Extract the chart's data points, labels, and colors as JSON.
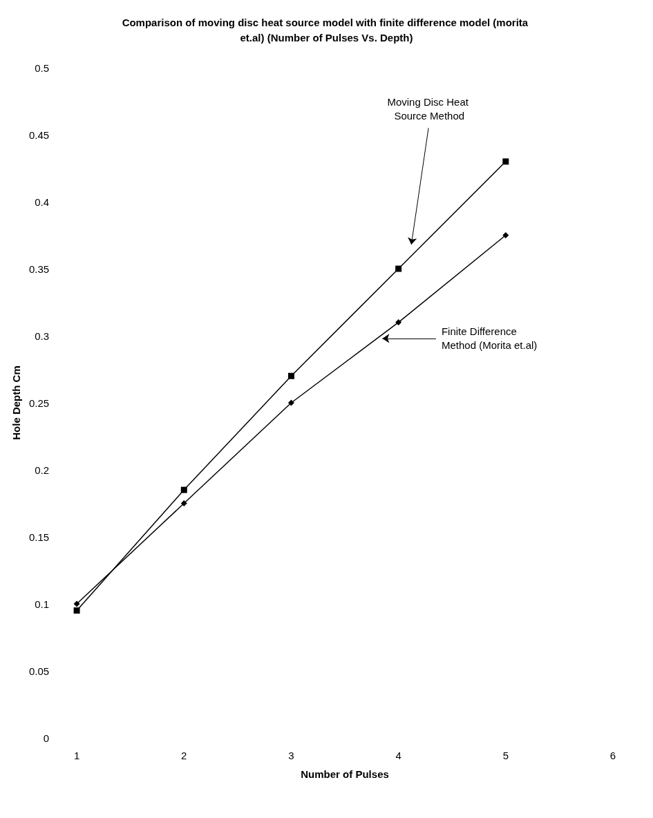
{
  "chart_data": {
    "type": "line",
    "title": "Comparison of moving disc heat source model with finite difference model (morita et.al) (Number of Pulses Vs. Depth)",
    "xlabel": "Number of Pulses",
    "ylabel": "Hole Depth Cm",
    "x": [
      1,
      2,
      3,
      4,
      5
    ],
    "series": [
      {
        "name": "Moving Disc Heat Source Method",
        "color": "#000000",
        "marker": "square",
        "values": [
          0.095,
          0.185,
          0.27,
          0.35,
          0.43
        ]
      },
      {
        "name": "Finite Difference Method (Morita et.al)",
        "color": "#000000",
        "marker": "diamond",
        "values": [
          0.1,
          0.175,
          0.25,
          0.31,
          0.375
        ]
      }
    ],
    "xlim": [
      1,
      6
    ],
    "xticks": [
      1,
      2,
      3,
      4,
      5,
      6
    ],
    "ylim": [
      0,
      0.5
    ],
    "yticks": [
      0,
      0.05,
      0.1,
      0.15,
      0.2,
      0.25,
      0.3,
      0.35,
      0.4,
      0.45,
      0.5
    ],
    "grid": false,
    "legend": false,
    "line_style": "solid"
  }
}
